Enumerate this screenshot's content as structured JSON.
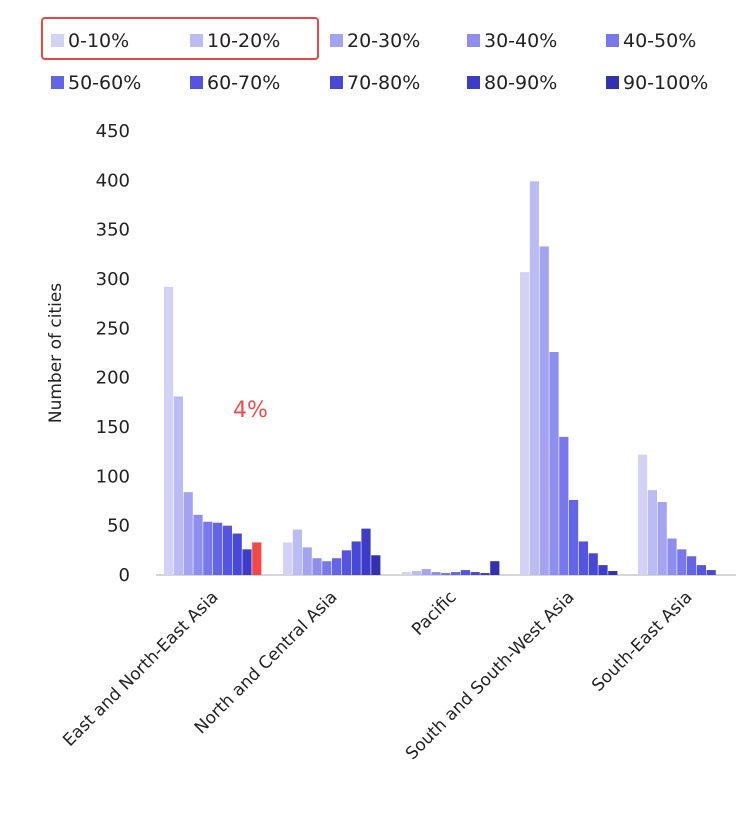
{
  "chart_data": {
    "type": "bar",
    "ylabel": "Number of cities",
    "xlabel": "",
    "ylim": [
      0,
      450
    ],
    "yticks": [
      0,
      50,
      100,
      150,
      200,
      250,
      300,
      350,
      400,
      450
    ],
    "grid": false,
    "legend_position": "top",
    "categories": [
      "East and North-East Asia",
      "North and Central Asia",
      "Pacific",
      "South and South-West Asia",
      "South-East Asia"
    ],
    "series": [
      {
        "name": "0-10%",
        "color": "#d2d2f7",
        "values": [
          292,
          33,
          3,
          307,
          122
        ]
      },
      {
        "name": "10-20%",
        "color": "#bcbcf5",
        "values": [
          181,
          46,
          4,
          399,
          86
        ]
      },
      {
        "name": "20-30%",
        "color": "#a3a3f2",
        "values": [
          84,
          28,
          6,
          333,
          74
        ]
      },
      {
        "name": "30-40%",
        "color": "#8e8eef",
        "values": [
          61,
          17,
          3,
          226,
          37
        ]
      },
      {
        "name": "40-50%",
        "color": "#7878ec",
        "values": [
          54,
          14,
          2,
          140,
          26
        ]
      },
      {
        "name": "50-60%",
        "color": "#6464e7",
        "values": [
          53,
          17,
          3,
          76,
          19
        ]
      },
      {
        "name": "60-70%",
        "color": "#5454e0",
        "values": [
          50,
          25,
          5,
          34,
          10
        ]
      },
      {
        "name": "70-80%",
        "color": "#4848d6",
        "values": [
          42,
          34,
          3,
          22,
          5
        ]
      },
      {
        "name": "80-90%",
        "color": "#3c3cc8",
        "values": [
          26,
          47,
          2,
          10,
          0
        ]
      },
      {
        "name": "90-100%",
        "color": "#3232b0",
        "values": [
          33,
          20,
          14,
          4,
          0
        ]
      }
    ],
    "highlight": {
      "category_index": 0,
      "series_index": 9,
      "color": "#f24848"
    },
    "legend_highlight": [
      "0-10%",
      "10-20%"
    ],
    "legend_highlight_color": "#e84545",
    "annotations": [
      {
        "text": "4%",
        "color": "#f04a4a"
      }
    ]
  }
}
